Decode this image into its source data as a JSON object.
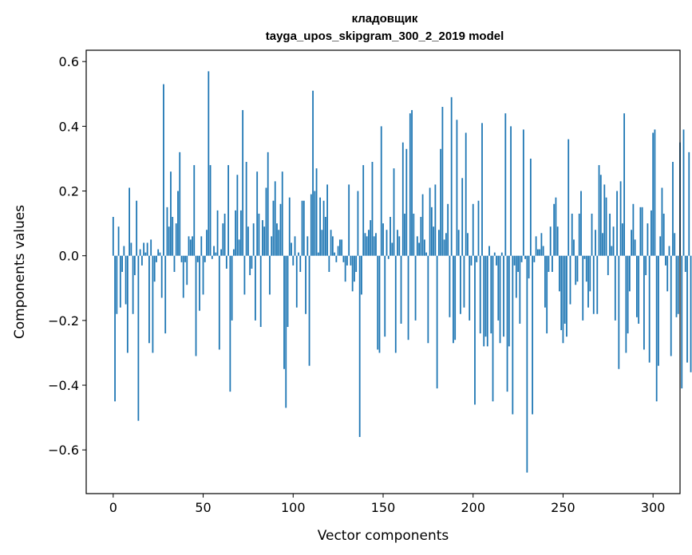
{
  "chart_data": {
    "type": "bar",
    "title": "кладовщик",
    "subtitle": "tayga_upos_skipgram_300_2_2019 model",
    "xlabel": "Vector components",
    "ylabel": "Components values",
    "xlim": [
      -15,
      315
    ],
    "ylim": [
      -0.735,
      0.635
    ],
    "xticks": [
      0,
      50,
      100,
      150,
      200,
      250,
      300
    ],
    "xtick_labels": [
      "0",
      "50",
      "100",
      "150",
      "200",
      "250",
      "300"
    ],
    "yticks": [
      0.6,
      0.4,
      0.2,
      0.0,
      -0.2,
      -0.4,
      -0.6
    ],
    "ytick_labels": [
      "0.6",
      "0.4",
      "0.2",
      "0.0",
      "−0.2",
      "−0.4",
      "−0.6"
    ],
    "grid": false,
    "bar_color": "#1f77b4",
    "values": [
      0.12,
      -0.45,
      -0.18,
      0.09,
      -0.16,
      -0.05,
      0.03,
      -0.15,
      -0.3,
      0.21,
      0.04,
      -0.18,
      -0.06,
      0.17,
      -0.51,
      0.02,
      -0.03,
      0.04,
      0.01,
      0.04,
      -0.27,
      0.05,
      -0.3,
      -0.08,
      -0.02,
      0.02,
      0.01,
      -0.13,
      0.53,
      -0.24,
      0.15,
      0.09,
      0.26,
      0.12,
      -0.05,
      0.1,
      0.2,
      0.32,
      -0.02,
      -0.13,
      -0.02,
      -0.09,
      0.06,
      0.05,
      0.06,
      0.28,
      -0.31,
      -0.02,
      -0.17,
      0.06,
      -0.12,
      -0.02,
      0.08,
      0.57,
      0.28,
      -0.01,
      0.03,
      0.01,
      0.14,
      -0.29,
      0.02,
      0.1,
      0.13,
      -0.04,
      0.28,
      -0.42,
      -0.2,
      0.02,
      0.14,
      0.25,
      0.05,
      0.14,
      0.45,
      -0.12,
      0.29,
      0.09,
      -0.06,
      -0.04,
      0.1,
      -0.2,
      0.26,
      0.13,
      -0.22,
      0.11,
      0.09,
      0.21,
      0.32,
      -0.12,
      0.06,
      0.17,
      0.23,
      0.1,
      0.08,
      0.16,
      0.26,
      -0.35,
      -0.47,
      -0.22,
      0.18,
      0.04,
      -0.03,
      0.06,
      -0.16,
      0.01,
      -0.05,
      0.17,
      0.17,
      -0.18,
      0.06,
      -0.34,
      0.19,
      0.51,
      0.2,
      0.27,
      0.01,
      0.18,
      0.08,
      0.17,
      0.12,
      0.22,
      -0.05,
      0.08,
      0.06,
      0.01,
      -0.02,
      0.03,
      0.05,
      0.05,
      -0.02,
      -0.08,
      -0.03,
      0.22,
      -0.03,
      -0.11,
      -0.08,
      -0.05,
      0.2,
      -0.56,
      -0.12,
      0.28,
      0.07,
      0.06,
      0.08,
      0.11,
      0.29,
      0.06,
      0.07,
      -0.29,
      -0.3,
      0.4,
      0.1,
      -0.25,
      0.08,
      -0.01,
      0.12,
      0.04,
      0.27,
      -0.3,
      0.08,
      0.06,
      -0.21,
      0.35,
      0.13,
      0.33,
      -0.26,
      0.44,
      0.45,
      0.13,
      -0.2,
      0.06,
      0.04,
      0.12,
      0.19,
      0.05,
      0.01,
      -0.27,
      0.21,
      0.15,
      0.09,
      0.22,
      -0.41,
      0.08,
      0.33,
      0.46,
      0.05,
      0.07,
      0.16,
      -0.19,
      0.49,
      -0.27,
      -0.26,
      0.42,
      0.08,
      -0.18,
      0.24,
      -0.16,
      0.38,
      0.07,
      -0.2,
      -0.03,
      0.16,
      -0.46,
      -0.02,
      0.17,
      -0.24,
      0.41,
      -0.28,
      -0.25,
      -0.28,
      0.03,
      -0.24,
      -0.45,
      0.01,
      -0.03,
      -0.2,
      -0.27,
      0.01,
      -0.25,
      0.44,
      -0.42,
      -0.28,
      0.4,
      -0.49,
      -0.03,
      -0.13,
      -0.05,
      -0.21,
      -0.02,
      0.39,
      -0.01,
      -0.67,
      -0.07,
      0.3,
      -0.49,
      -0.02,
      0.06,
      0.02,
      0.02,
      0.07,
      0.03,
      -0.16,
      -0.24,
      -0.05,
      0.09,
      -0.05,
      0.16,
      0.18,
      0.09,
      -0.11,
      -0.23,
      -0.27,
      -0.21,
      -0.25,
      0.36,
      -0.15,
      0.13,
      0.05,
      -0.09,
      -0.08,
      0.13,
      0.2,
      -0.2,
      -0.01,
      -0.08,
      -0.16,
      -0.11,
      0.13,
      -0.18,
      0.08,
      -0.18,
      0.28,
      0.25,
      0.07,
      0.22,
      0.18,
      -0.06,
      0.13,
      0.03,
      0.09,
      -0.2,
      0.2,
      -0.35,
      0.23,
      0.1,
      0.44,
      -0.3,
      -0.24,
      -0.11,
      0.08,
      0.16,
      0.05,
      -0.19,
      -0.21,
      0.15,
      0.15,
      -0.29,
      -0.06,
      0.1,
      -0.33,
      0.14,
      0.38,
      0.39,
      -0.45,
      -0.34,
      0.06,
      0.21,
      0.13,
      -0.03,
      -0.11,
      0.03,
      -0.31,
      0.29,
      0.07,
      -0.19,
      -0.18,
      0.35,
      -0.41,
      0.39,
      -0.05,
      -0.33,
      0.32,
      -0.36
    ]
  }
}
